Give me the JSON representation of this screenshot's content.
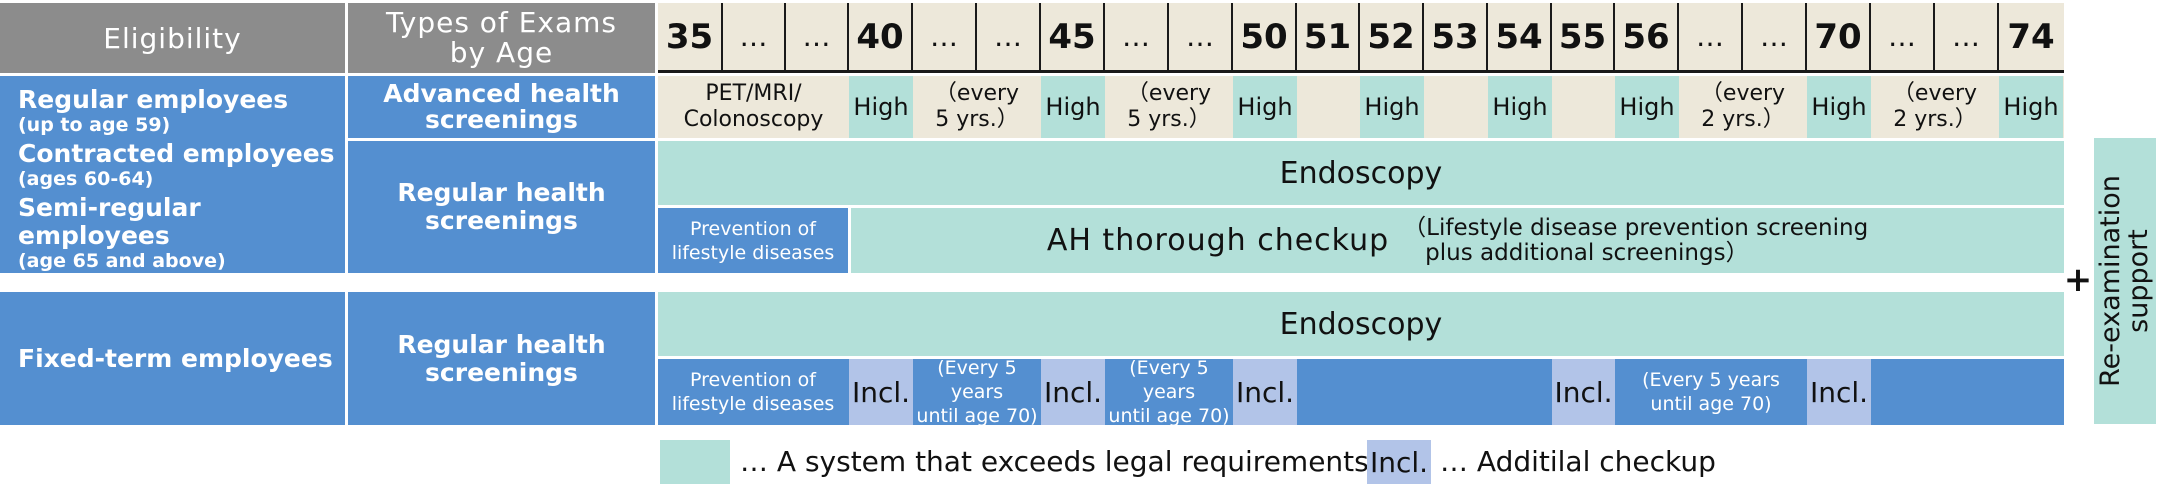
{
  "header": {
    "eligibility": "Eligibility",
    "types_line1": "Types of Exams",
    "types_line2": "by Age",
    "ages": [
      "35",
      "…",
      "…",
      "40",
      "…",
      "…",
      "45",
      "…",
      "…",
      "50",
      "51",
      "52",
      "53",
      "54",
      "55",
      "56",
      "…",
      "…",
      "70",
      "…",
      "…",
      "74"
    ]
  },
  "group1": {
    "eligibility": [
      {
        "title": "Regular employees",
        "sub": "(up to age 59)"
      },
      {
        "title": "Contracted employees",
        "sub": "(ages 60-64)"
      },
      {
        "title": "Semi-regular employees",
        "sub": "(age 65 and above)"
      }
    ],
    "advanced_label": [
      "Advanced health",
      "screenings"
    ],
    "advanced_first": [
      "PET/MRI/",
      "Colonoscopy"
    ],
    "high": "High",
    "every5": [
      "（every",
      "5 yrs.）"
    ],
    "every2": [
      "（every",
      "2 yrs.）"
    ],
    "regular_label": [
      "Regular health",
      "screenings"
    ],
    "endoscopy": "Endoscopy",
    "prevention": [
      "Prevention of",
      "lifestyle diseases"
    ],
    "ah_main": "AH thorough checkup",
    "ah_note": [
      "（Lifestyle disease prevention screening",
      "plus additional screenings）"
    ]
  },
  "group2": {
    "eligibility": "Fixed-term employees",
    "regular_label": [
      "Regular health",
      "screenings"
    ],
    "endoscopy": "Endoscopy",
    "prevention": [
      "Prevention of",
      "lifestyle diseases"
    ],
    "incl": "Incl.",
    "every5_70": [
      "(Every 5 years",
      "until age 70)"
    ]
  },
  "side": {
    "plus": "+",
    "reexam": [
      "Re-examination",
      "support"
    ]
  },
  "legend": {
    "teal_text": "… A system that exceeds legal requirements",
    "incl_box": "Incl.",
    "incl_text": "… Additilal checkup"
  },
  "colors": {
    "header_gray": "#8c8c8c",
    "label_blue": "#548fd0",
    "teal": "#b3e0d9",
    "beige": "#ede8da",
    "lavender": "#b2c4e8"
  }
}
